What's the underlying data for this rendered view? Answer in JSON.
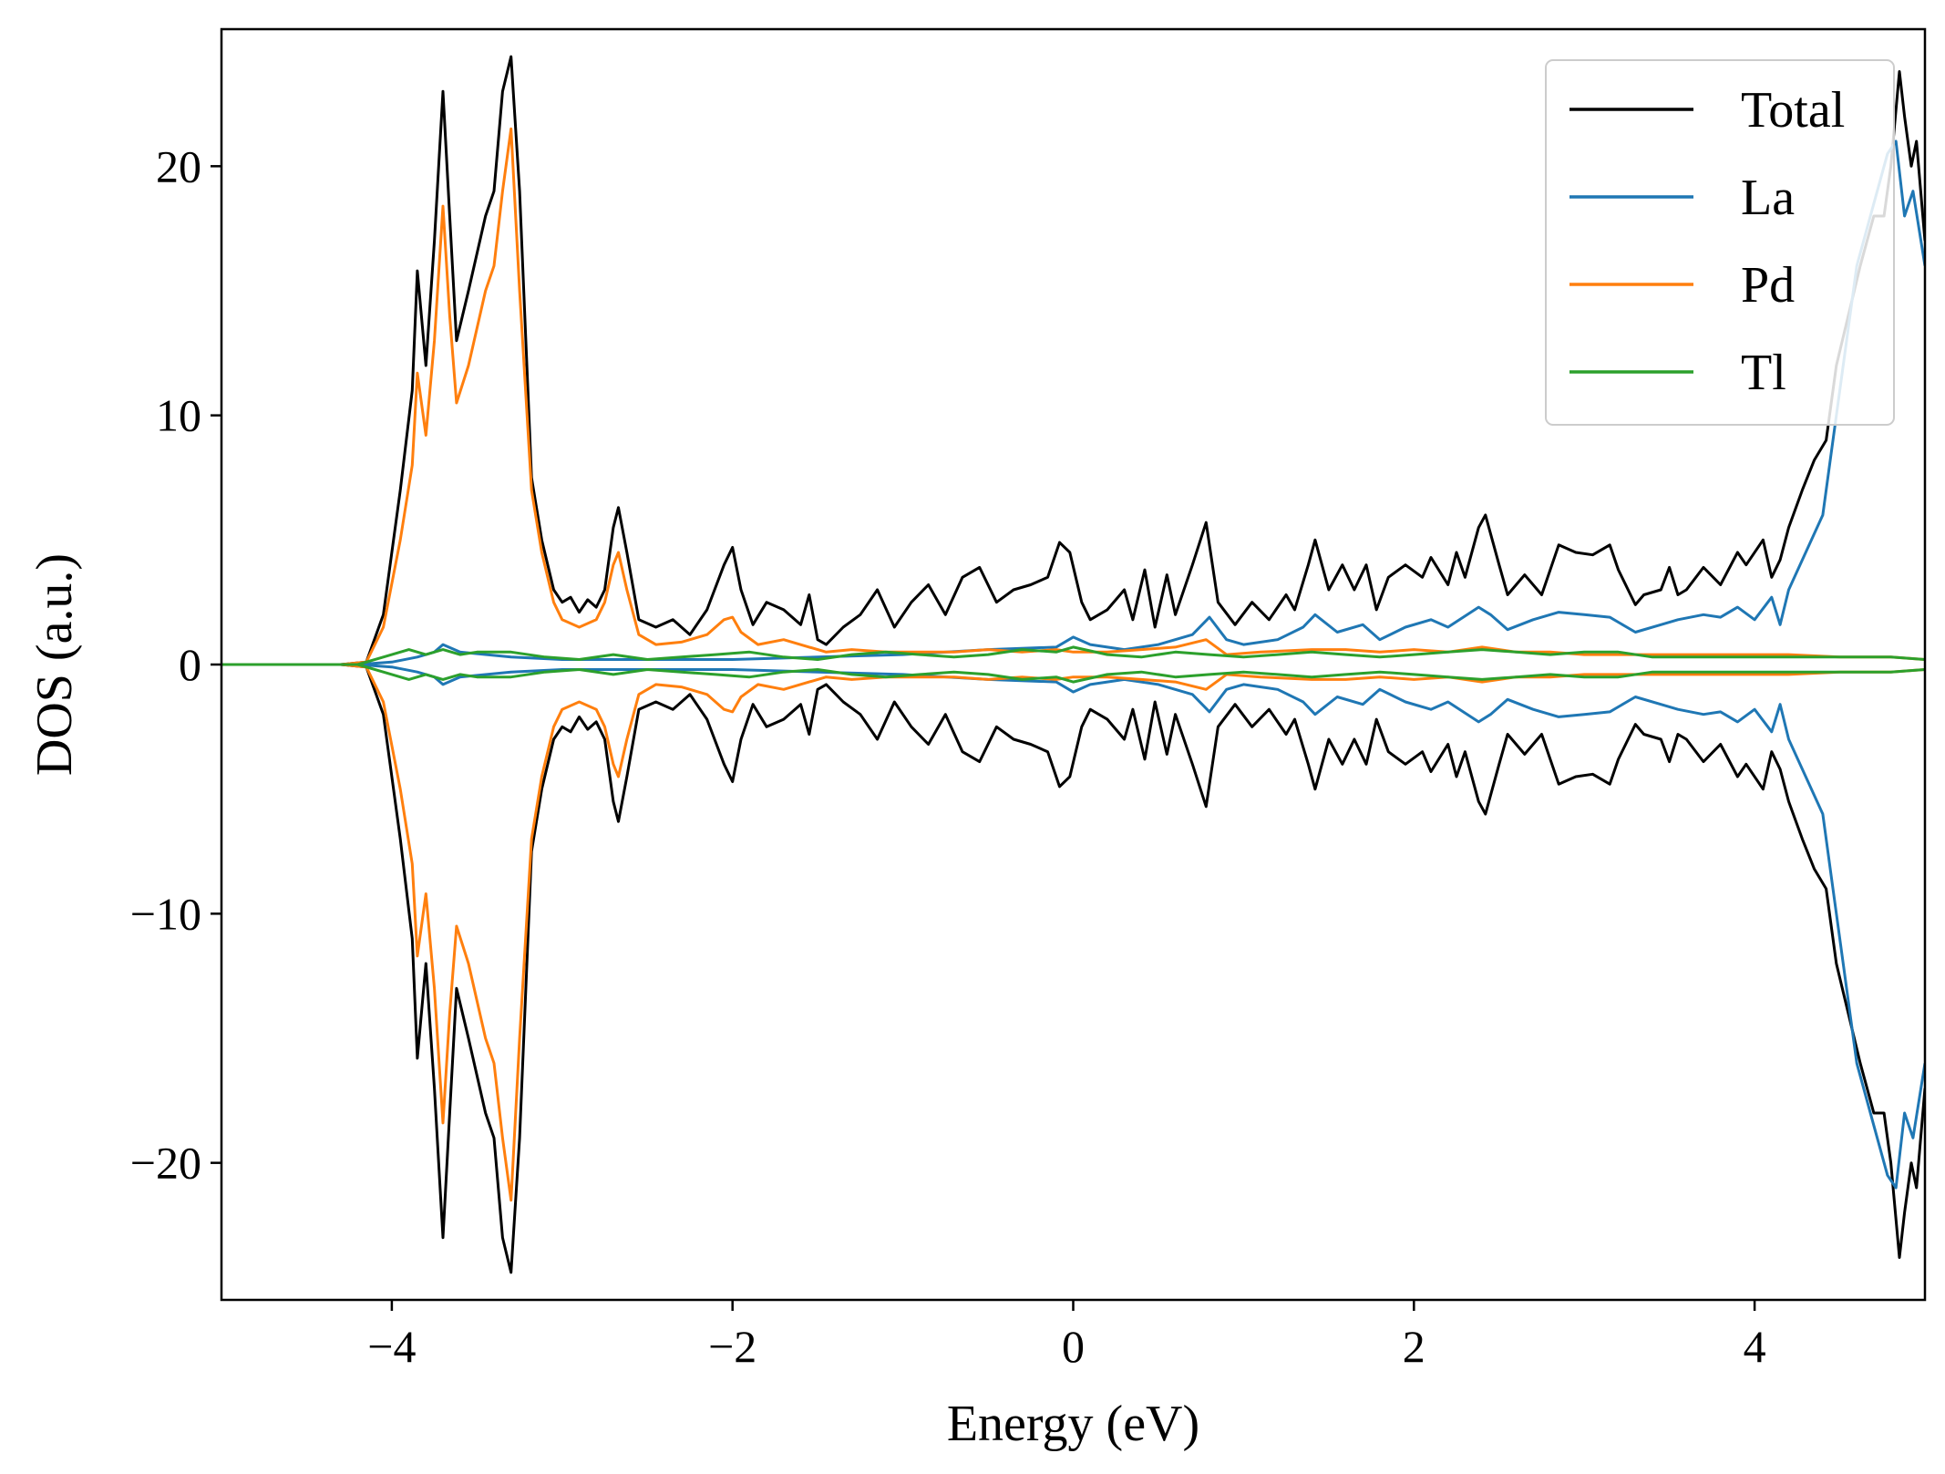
{
  "chart_data": {
    "type": "line",
    "title": "",
    "xlabel": "Energy (eV)",
    "ylabel": "DOS (a.u.)",
    "xlim": [
      -5,
      5
    ],
    "ylim": [
      -25.5,
      25.5
    ],
    "x_ticks": [
      -4,
      -2,
      0,
      2,
      4
    ],
    "x_tick_labels": [
      "−4",
      "−2",
      "0",
      "2",
      "4"
    ],
    "y_ticks": [
      -20,
      -10,
      0,
      10,
      20
    ],
    "y_tick_labels": [
      "−20",
      "−10",
      "0",
      "10",
      "20"
    ],
    "grid": false,
    "legend_position": "top-right",
    "mirrored_spin_down": true,
    "series": [
      {
        "name": "Total",
        "color": "#000000",
        "points": [
          [
            -5,
            0
          ],
          [
            -4.3,
            0
          ],
          [
            -4.15,
            0.1
          ],
          [
            -4.05,
            2
          ],
          [
            -3.95,
            7
          ],
          [
            -3.88,
            11
          ],
          [
            -3.85,
            15.8
          ],
          [
            -3.8,
            12
          ],
          [
            -3.75,
            17
          ],
          [
            -3.7,
            23
          ],
          [
            -3.66,
            18
          ],
          [
            -3.62,
            13
          ],
          [
            -3.55,
            15
          ],
          [
            -3.45,
            18
          ],
          [
            -3.4,
            19
          ],
          [
            -3.35,
            23
          ],
          [
            -3.3,
            24.4
          ],
          [
            -3.25,
            19
          ],
          [
            -3.18,
            7.5
          ],
          [
            -3.12,
            5
          ],
          [
            -3.05,
            3
          ],
          [
            -3,
            2.5
          ],
          [
            -2.95,
            2.7
          ],
          [
            -2.9,
            2.1
          ],
          [
            -2.85,
            2.6
          ],
          [
            -2.8,
            2.3
          ],
          [
            -2.75,
            3
          ],
          [
            -2.7,
            5.5
          ],
          [
            -2.67,
            6.3
          ],
          [
            -2.62,
            4.5
          ],
          [
            -2.55,
            1.8
          ],
          [
            -2.45,
            1.5
          ],
          [
            -2.35,
            1.8
          ],
          [
            -2.25,
            1.2
          ],
          [
            -2.15,
            2.2
          ],
          [
            -2.05,
            4
          ],
          [
            -2,
            4.7
          ],
          [
            -1.95,
            3
          ],
          [
            -1.88,
            1.6
          ],
          [
            -1.8,
            2.5
          ],
          [
            -1.7,
            2.2
          ],
          [
            -1.6,
            1.6
          ],
          [
            -1.55,
            2.8
          ],
          [
            -1.5,
            1
          ],
          [
            -1.45,
            0.8
          ],
          [
            -1.35,
            1.5
          ],
          [
            -1.25,
            2
          ],
          [
            -1.15,
            3
          ],
          [
            -1.05,
            1.5
          ],
          [
            -0.95,
            2.5
          ],
          [
            -0.85,
            3.2
          ],
          [
            -0.75,
            2
          ],
          [
            -0.65,
            3.5
          ],
          [
            -0.55,
            3.9
          ],
          [
            -0.45,
            2.5
          ],
          [
            -0.35,
            3
          ],
          [
            -0.25,
            3.2
          ],
          [
            -0.15,
            3.5
          ],
          [
            -0.08,
            4.9
          ],
          [
            -0.02,
            4.5
          ],
          [
            0.05,
            2.5
          ],
          [
            0.1,
            1.8
          ],
          [
            0.2,
            2.2
          ],
          [
            0.3,
            3
          ],
          [
            0.35,
            1.8
          ],
          [
            0.42,
            3.8
          ],
          [
            0.48,
            1.5
          ],
          [
            0.55,
            3.6
          ],
          [
            0.6,
            2
          ],
          [
            0.7,
            4
          ],
          [
            0.78,
            5.7
          ],
          [
            0.85,
            2.5
          ],
          [
            0.95,
            1.6
          ],
          [
            1.05,
            2.5
          ],
          [
            1.15,
            1.8
          ],
          [
            1.25,
            2.8
          ],
          [
            1.3,
            2.2
          ],
          [
            1.38,
            4
          ],
          [
            1.42,
            5
          ],
          [
            1.5,
            3
          ],
          [
            1.58,
            4
          ],
          [
            1.65,
            3
          ],
          [
            1.72,
            4
          ],
          [
            1.78,
            2.2
          ],
          [
            1.85,
            3.5
          ],
          [
            1.95,
            4
          ],
          [
            2.05,
            3.5
          ],
          [
            2.1,
            4.3
          ],
          [
            2.2,
            3.2
          ],
          [
            2.25,
            4.5
          ],
          [
            2.3,
            3.5
          ],
          [
            2.38,
            5.5
          ],
          [
            2.42,
            6
          ],
          [
            2.5,
            4
          ],
          [
            2.55,
            2.8
          ],
          [
            2.65,
            3.6
          ],
          [
            2.75,
            2.8
          ],
          [
            2.85,
            4.8
          ],
          [
            2.95,
            4.5
          ],
          [
            3.05,
            4.4
          ],
          [
            3.15,
            4.8
          ],
          [
            3.2,
            3.8
          ],
          [
            3.3,
            2.4
          ],
          [
            3.35,
            2.8
          ],
          [
            3.45,
            3
          ],
          [
            3.5,
            3.9
          ],
          [
            3.55,
            2.8
          ],
          [
            3.6,
            3
          ],
          [
            3.7,
            3.9
          ],
          [
            3.8,
            3.2
          ],
          [
            3.9,
            4.5
          ],
          [
            3.95,
            4
          ],
          [
            4.05,
            5
          ],
          [
            4.1,
            3.5
          ],
          [
            4.15,
            4.2
          ],
          [
            4.2,
            5.5
          ],
          [
            4.28,
            7
          ],
          [
            4.35,
            8.2
          ],
          [
            4.42,
            9
          ],
          [
            4.48,
            12
          ],
          [
            4.55,
            14
          ],
          [
            4.62,
            16
          ],
          [
            4.7,
            18
          ],
          [
            4.76,
            18
          ],
          [
            4.8,
            20
          ],
          [
            4.85,
            23.8
          ],
          [
            4.88,
            22
          ],
          [
            4.92,
            20
          ],
          [
            4.95,
            21
          ],
          [
            5,
            17
          ]
        ]
      },
      {
        "name": "La",
        "color": "#1f77b4",
        "points": [
          [
            -5,
            0
          ],
          [
            -4.2,
            0
          ],
          [
            -4,
            0.1
          ],
          [
            -3.85,
            0.3
          ],
          [
            -3.75,
            0.5
          ],
          [
            -3.7,
            0.8
          ],
          [
            -3.6,
            0.5
          ],
          [
            -3.3,
            0.3
          ],
          [
            -3,
            0.2
          ],
          [
            -2.6,
            0.2
          ],
          [
            -2,
            0.2
          ],
          [
            -1.5,
            0.3
          ],
          [
            -1,
            0.4
          ],
          [
            -0.5,
            0.6
          ],
          [
            -0.1,
            0.7
          ],
          [
            0,
            1.1
          ],
          [
            0.1,
            0.8
          ],
          [
            0.3,
            0.6
          ],
          [
            0.5,
            0.8
          ],
          [
            0.7,
            1.2
          ],
          [
            0.8,
            1.9
          ],
          [
            0.9,
            1
          ],
          [
            1,
            0.8
          ],
          [
            1.2,
            1
          ],
          [
            1.35,
            1.5
          ],
          [
            1.42,
            2
          ],
          [
            1.55,
            1.3
          ],
          [
            1.7,
            1.6
          ],
          [
            1.8,
            1
          ],
          [
            1.95,
            1.5
          ],
          [
            2.1,
            1.8
          ],
          [
            2.2,
            1.5
          ],
          [
            2.38,
            2.3
          ],
          [
            2.45,
            2
          ],
          [
            2.55,
            1.4
          ],
          [
            2.7,
            1.8
          ],
          [
            2.85,
            2.1
          ],
          [
            3,
            2
          ],
          [
            3.15,
            1.9
          ],
          [
            3.3,
            1.3
          ],
          [
            3.45,
            1.6
          ],
          [
            3.55,
            1.8
          ],
          [
            3.7,
            2
          ],
          [
            3.8,
            1.9
          ],
          [
            3.9,
            2.3
          ],
          [
            4,
            1.8
          ],
          [
            4.1,
            2.7
          ],
          [
            4.15,
            1.6
          ],
          [
            4.2,
            3
          ],
          [
            4.3,
            4.5
          ],
          [
            4.4,
            6
          ],
          [
            4.45,
            8.5
          ],
          [
            4.52,
            12
          ],
          [
            4.6,
            16
          ],
          [
            4.7,
            18.5
          ],
          [
            4.78,
            20.5
          ],
          [
            4.83,
            21
          ],
          [
            4.88,
            18
          ],
          [
            4.93,
            19
          ],
          [
            5,
            16
          ]
        ]
      },
      {
        "name": "Pd",
        "color": "#ff7f0e",
        "points": [
          [
            -5,
            0
          ],
          [
            -4.3,
            0
          ],
          [
            -4.15,
            0.1
          ],
          [
            -4.05,
            1.5
          ],
          [
            -3.95,
            5
          ],
          [
            -3.88,
            8
          ],
          [
            -3.85,
            11.7
          ],
          [
            -3.8,
            9.2
          ],
          [
            -3.75,
            13
          ],
          [
            -3.7,
            18.4
          ],
          [
            -3.66,
            14
          ],
          [
            -3.62,
            10.5
          ],
          [
            -3.55,
            12
          ],
          [
            -3.45,
            15
          ],
          [
            -3.4,
            16
          ],
          [
            -3.35,
            19
          ],
          [
            -3.3,
            21.5
          ],
          [
            -3.25,
            15
          ],
          [
            -3.18,
            7
          ],
          [
            -3.12,
            4.5
          ],
          [
            -3.05,
            2.5
          ],
          [
            -3,
            1.8
          ],
          [
            -2.9,
            1.5
          ],
          [
            -2.8,
            1.8
          ],
          [
            -2.75,
            2.5
          ],
          [
            -2.7,
            4
          ],
          [
            -2.67,
            4.5
          ],
          [
            -2.62,
            3
          ],
          [
            -2.55,
            1.2
          ],
          [
            -2.45,
            0.8
          ],
          [
            -2.3,
            0.9
          ],
          [
            -2.15,
            1.2
          ],
          [
            -2.05,
            1.8
          ],
          [
            -2,
            1.9
          ],
          [
            -1.95,
            1.3
          ],
          [
            -1.85,
            0.8
          ],
          [
            -1.7,
            1
          ],
          [
            -1.55,
            0.7
          ],
          [
            -1.45,
            0.5
          ],
          [
            -1.3,
            0.6
          ],
          [
            -1.1,
            0.5
          ],
          [
            -0.9,
            0.5
          ],
          [
            -0.7,
            0.5
          ],
          [
            -0.5,
            0.6
          ],
          [
            -0.3,
            0.5
          ],
          [
            -0.1,
            0.6
          ],
          [
            0,
            0.5
          ],
          [
            0.2,
            0.5
          ],
          [
            0.4,
            0.6
          ],
          [
            0.6,
            0.7
          ],
          [
            0.78,
            1
          ],
          [
            0.9,
            0.4
          ],
          [
            1.1,
            0.5
          ],
          [
            1.4,
            0.6
          ],
          [
            1.6,
            0.6
          ],
          [
            1.8,
            0.5
          ],
          [
            2,
            0.6
          ],
          [
            2.2,
            0.5
          ],
          [
            2.4,
            0.7
          ],
          [
            2.6,
            0.5
          ],
          [
            2.8,
            0.5
          ],
          [
            3,
            0.4
          ],
          [
            3.2,
            0.4
          ],
          [
            3.4,
            0.4
          ],
          [
            3.6,
            0.4
          ],
          [
            3.8,
            0.4
          ],
          [
            4,
            0.4
          ],
          [
            4.2,
            0.4
          ],
          [
            4.5,
            0.3
          ],
          [
            4.8,
            0.3
          ],
          [
            5,
            0.2
          ]
        ]
      },
      {
        "name": "Tl",
        "color": "#2ca02c",
        "points": [
          [
            -5,
            0
          ],
          [
            -4.2,
            0
          ],
          [
            -4.05,
            0.3
          ],
          [
            -3.9,
            0.6
          ],
          [
            -3.8,
            0.4
          ],
          [
            -3.7,
            0.6
          ],
          [
            -3.6,
            0.4
          ],
          [
            -3.5,
            0.5
          ],
          [
            -3.3,
            0.5
          ],
          [
            -3.1,
            0.3
          ],
          [
            -2.9,
            0.2
          ],
          [
            -2.7,
            0.4
          ],
          [
            -2.5,
            0.2
          ],
          [
            -2.3,
            0.3
          ],
          [
            -2.1,
            0.4
          ],
          [
            -1.9,
            0.5
          ],
          [
            -1.7,
            0.3
          ],
          [
            -1.5,
            0.2
          ],
          [
            -1.3,
            0.4
          ],
          [
            -1.1,
            0.5
          ],
          [
            -0.9,
            0.4
          ],
          [
            -0.7,
            0.3
          ],
          [
            -0.5,
            0.4
          ],
          [
            -0.3,
            0.6
          ],
          [
            -0.1,
            0.5
          ],
          [
            0,
            0.7
          ],
          [
            0.2,
            0.4
          ],
          [
            0.4,
            0.3
          ],
          [
            0.6,
            0.5
          ],
          [
            0.8,
            0.4
          ],
          [
            1,
            0.3
          ],
          [
            1.2,
            0.4
          ],
          [
            1.4,
            0.5
          ],
          [
            1.6,
            0.4
          ],
          [
            1.8,
            0.3
          ],
          [
            2,
            0.4
          ],
          [
            2.2,
            0.5
          ],
          [
            2.4,
            0.6
          ],
          [
            2.6,
            0.5
          ],
          [
            2.8,
            0.4
          ],
          [
            3,
            0.5
          ],
          [
            3.2,
            0.5
          ],
          [
            3.4,
            0.3
          ],
          [
            3.6,
            0.3
          ],
          [
            3.8,
            0.3
          ],
          [
            4,
            0.3
          ],
          [
            4.2,
            0.3
          ],
          [
            4.4,
            0.3
          ],
          [
            4.6,
            0.3
          ],
          [
            4.8,
            0.3
          ],
          [
            5,
            0.2
          ]
        ]
      }
    ]
  }
}
